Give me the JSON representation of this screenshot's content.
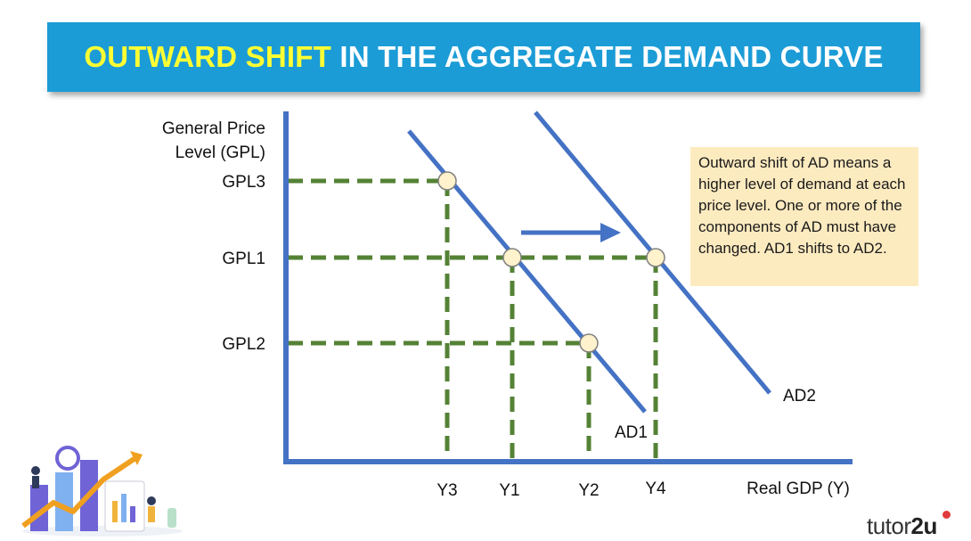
{
  "title": {
    "highlight": "OUTWARD SHIFT",
    "rest": " IN THE AGGREGATE DEMAND CURVE"
  },
  "y_axis": {
    "label_line1": "General Price",
    "label_line2": "Level (GPL)"
  },
  "x_axis": {
    "label": "Real GDP (Y)"
  },
  "price_levels": {
    "gpl3": "GPL3",
    "gpl1": "GPL1",
    "gpl2": "GPL2"
  },
  "output_levels": {
    "y3": "Y3",
    "y1": "Y1",
    "y2": "Y2",
    "y4": "Y4"
  },
  "curves": {
    "ad1": "AD1",
    "ad2": "AD2"
  },
  "callout": "Outward shift of AD means a higher level of demand at each price level. One or more of the components of AD must have changed. AD1 shifts to AD2.",
  "brand": {
    "name_part1": "tutor",
    "name_part2": "2u"
  },
  "colors": {
    "banner": "#1b9cd6",
    "highlight": "#ffff33",
    "curve": "#4472c4",
    "guide": "#548235",
    "callout_bg": "#fdebc0",
    "point_fill": "#fff2cc"
  }
}
